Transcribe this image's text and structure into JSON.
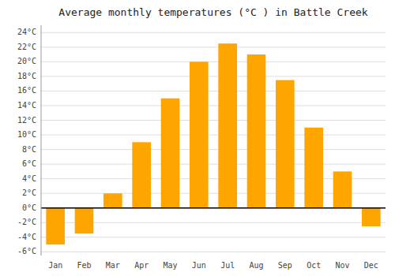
{
  "chart_data": {
    "type": "bar",
    "title": "Average monthly temperatures (°C ) in Battle Creek",
    "categories": [
      "Jan",
      "Feb",
      "Mar",
      "Apr",
      "May",
      "Jun",
      "Jul",
      "Aug",
      "Sep",
      "Oct",
      "Nov",
      "Dec"
    ],
    "values": [
      -5.0,
      -3.5,
      2.0,
      9.0,
      15.0,
      20.0,
      22.5,
      21.0,
      17.5,
      11.0,
      5.0,
      -2.5
    ],
    "color": "#FFA500",
    "ylim": [
      -6.5,
      25
    ],
    "yticks": [
      {
        "value": -6,
        "label": "-6°C"
      },
      {
        "value": -4,
        "label": "-4°C"
      },
      {
        "value": -2,
        "label": "-2°C"
      },
      {
        "value": 0,
        "label": "0°C"
      },
      {
        "value": 2,
        "label": "2°C"
      },
      {
        "value": 4,
        "label": "4°C"
      },
      {
        "value": 6,
        "label": "6°C"
      },
      {
        "value": 8,
        "label": "8°C"
      },
      {
        "value": 10,
        "label": "10°C"
      },
      {
        "value": 12,
        "label": "12°C"
      },
      {
        "value": 14,
        "label": "14°C"
      },
      {
        "value": 16,
        "label": "16°C"
      },
      {
        "value": 18,
        "label": "18°C"
      },
      {
        "value": 20,
        "label": "20°C"
      },
      {
        "value": 22,
        "label": "22°C"
      },
      {
        "value": 24,
        "label": "24°C"
      }
    ],
    "grid": true
  }
}
